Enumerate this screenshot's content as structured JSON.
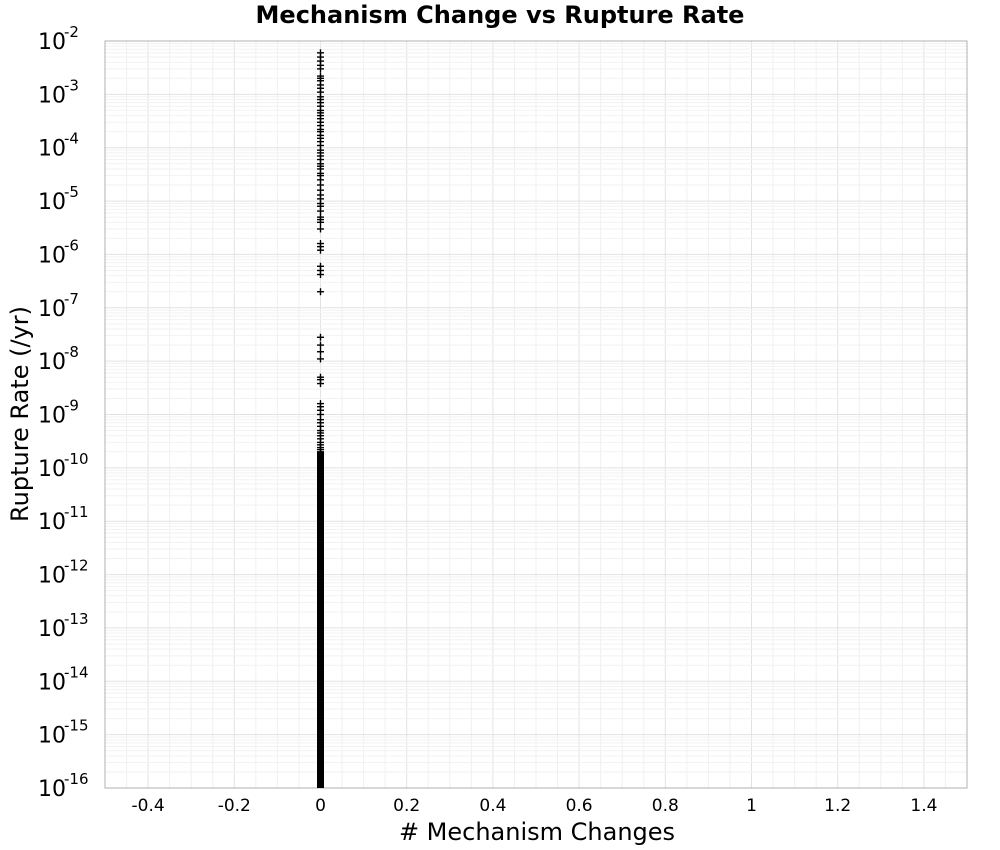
{
  "chart_data": {
    "type": "scatter",
    "title": "Mechanism Change vs Rupture Rate",
    "xlabel": "# Mechanism Changes",
    "ylabel": "Rupture Rate (/yr)",
    "xlim": [
      -0.5,
      1.5
    ],
    "ylim": [
      1e-16,
      0.01
    ],
    "yscale": "log",
    "grid": true,
    "marker": "plus",
    "marker_color": "#000000",
    "x_ticks": [
      -0.4,
      -0.2,
      0,
      0.2,
      0.4,
      0.6,
      0.8,
      1,
      1.2,
      1.4
    ],
    "x_tick_labels": [
      "-0.4",
      "-0.2",
      "0",
      "0.2",
      "0.4",
      "0.6",
      "0.8",
      "1",
      "1.2",
      "1.4"
    ],
    "y_tick_exponents": [
      -16,
      -15,
      -14,
      -13,
      -12,
      -11,
      -10,
      -9,
      -8,
      -7,
      -6,
      -5,
      -4,
      -3,
      -2
    ],
    "y_tick_base": "10",
    "dense_band": {
      "x": 0,
      "y_from": 1e-16,
      "y_to": 2e-10
    },
    "series": [
      {
        "x": [
          0,
          0,
          0,
          0,
          0,
          0,
          0,
          0,
          0,
          0,
          0,
          0,
          0,
          0,
          0,
          0,
          0,
          0,
          0,
          0,
          0,
          0,
          0,
          0,
          0,
          0,
          0,
          0,
          0,
          0,
          0,
          0,
          0,
          0,
          0,
          0,
          0,
          0,
          0,
          0,
          0,
          0,
          0,
          0,
          0,
          0,
          0,
          0,
          0,
          0,
          0,
          0,
          0,
          0,
          0,
          0,
          0,
          0,
          0,
          0,
          0,
          0,
          0,
          0,
          0,
          0,
          0,
          0,
          0,
          0,
          0,
          0,
          0,
          0,
          0,
          0,
          0,
          0,
          0,
          0
        ],
        "y": [
          0.006,
          0.005,
          0.0042,
          0.0035,
          0.003,
          0.0022,
          0.002,
          0.0018,
          0.0015,
          0.0013,
          0.0011,
          0.0009,
          0.0008,
          0.0007,
          0.0006,
          0.0005,
          0.00045,
          0.0004,
          0.00035,
          0.0003,
          0.00026,
          0.00022,
          0.0002,
          0.00017,
          0.00015,
          0.00013,
          0.00011,
          9e-05,
          8e-05,
          7e-05,
          6e-05,
          5e-05,
          4.5e-05,
          4e-05,
          3.3e-05,
          3e-05,
          2.5e-05,
          2e-05,
          1.6e-05,
          1.3e-05,
          1.1e-05,
          9e-06,
          8e-06,
          6.5e-06,
          5e-06,
          4.5e-06,
          4e-06,
          3e-06,
          1.6e-06,
          1.4e-06,
          1.2e-06,
          6e-07,
          5e-07,
          4.2e-07,
          2e-07,
          2.8e-08,
          2e-08,
          1.5e-08,
          1.1e-08,
          5e-09,
          4.5e-09,
          3.8e-09,
          1.6e-09,
          1.4e-09,
          1.2e-09,
          1e-09,
          8e-10,
          7e-10,
          6e-10,
          5e-10,
          4.5e-10,
          4e-10,
          3.5e-10,
          3e-10,
          2.7e-10,
          2.4e-10,
          2.2e-10,
          2e-10,
          1.8e-10,
          1.5e-10
        ]
      }
    ]
  }
}
